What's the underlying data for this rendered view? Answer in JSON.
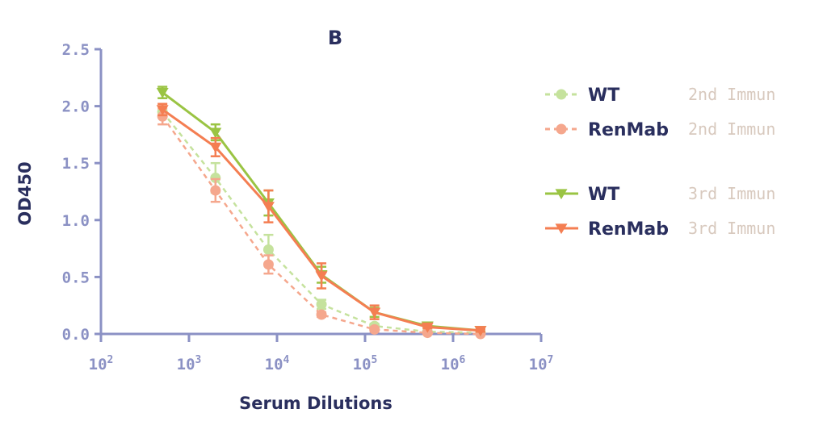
{
  "chart_data": {
    "type": "line",
    "title": "B",
    "xlabel": "Serum Dilutions",
    "ylabel": "OD450",
    "x_scale": "log10",
    "xlim": [
      100,
      10000000
    ],
    "ylim": [
      0,
      2.5
    ],
    "x_ticks": [
      {
        "value": 100,
        "base": "10",
        "exp": "2"
      },
      {
        "value": 1000,
        "base": "10",
        "exp": "3"
      },
      {
        "value": 10000,
        "base": "10",
        "exp": "4"
      },
      {
        "value": 100000,
        "base": "10",
        "exp": "5"
      },
      {
        "value": 1000000,
        "base": "10",
        "exp": "6"
      },
      {
        "value": 10000000,
        "base": "10",
        "exp": "7"
      }
    ],
    "y_ticks": [
      "0.0",
      "0.5",
      "1.0",
      "1.5",
      "2.0",
      "2.5"
    ],
    "grid": false,
    "legend_position": "right",
    "series": [
      {
        "name": "WT",
        "note": "2nd Immun",
        "color": "#c5e29d",
        "dashed": true,
        "marker": "circle",
        "x": [
          500,
          2000,
          8000,
          32000,
          128000,
          512000,
          2048000
        ],
        "y": [
          1.95,
          1.37,
          0.74,
          0.26,
          0.07,
          0.02,
          0.01
        ],
        "err": [
          0.05,
          0.13,
          0.13,
          0.04,
          0.02,
          0.01,
          0.01
        ]
      },
      {
        "name": "RenMab",
        "note": "2nd Immun",
        "color": "#f5a78d",
        "dashed": true,
        "marker": "circle",
        "x": [
          500,
          2000,
          8000,
          32000,
          128000,
          512000,
          2048000
        ],
        "y": [
          1.91,
          1.26,
          0.61,
          0.17,
          0.04,
          0.01,
          0.0
        ],
        "err": [
          0.07,
          0.1,
          0.08,
          0.02,
          0.02,
          0.01,
          0.01
        ]
      },
      {
        "name": "WT",
        "note": "3rd Immun",
        "color": "#9ac443",
        "dashed": false,
        "marker": "triangle-down",
        "x": [
          500,
          2000,
          8000,
          32000,
          128000,
          512000,
          2048000
        ],
        "y": [
          2.12,
          1.77,
          1.15,
          0.52,
          0.19,
          0.07,
          0.03
        ],
        "err": [
          0.05,
          0.07,
          0.11,
          0.07,
          0.04,
          0.01,
          0.01
        ]
      },
      {
        "name": "RenMab",
        "note": "3rd Immun",
        "color": "#f47e52",
        "dashed": false,
        "marker": "triangle-down",
        "x": [
          500,
          2000,
          8000,
          32000,
          128000,
          512000,
          2048000
        ],
        "y": [
          1.97,
          1.64,
          1.12,
          0.51,
          0.19,
          0.06,
          0.03
        ],
        "err": [
          0.05,
          0.08,
          0.14,
          0.11,
          0.06,
          0.01,
          0.01
        ]
      }
    ]
  }
}
